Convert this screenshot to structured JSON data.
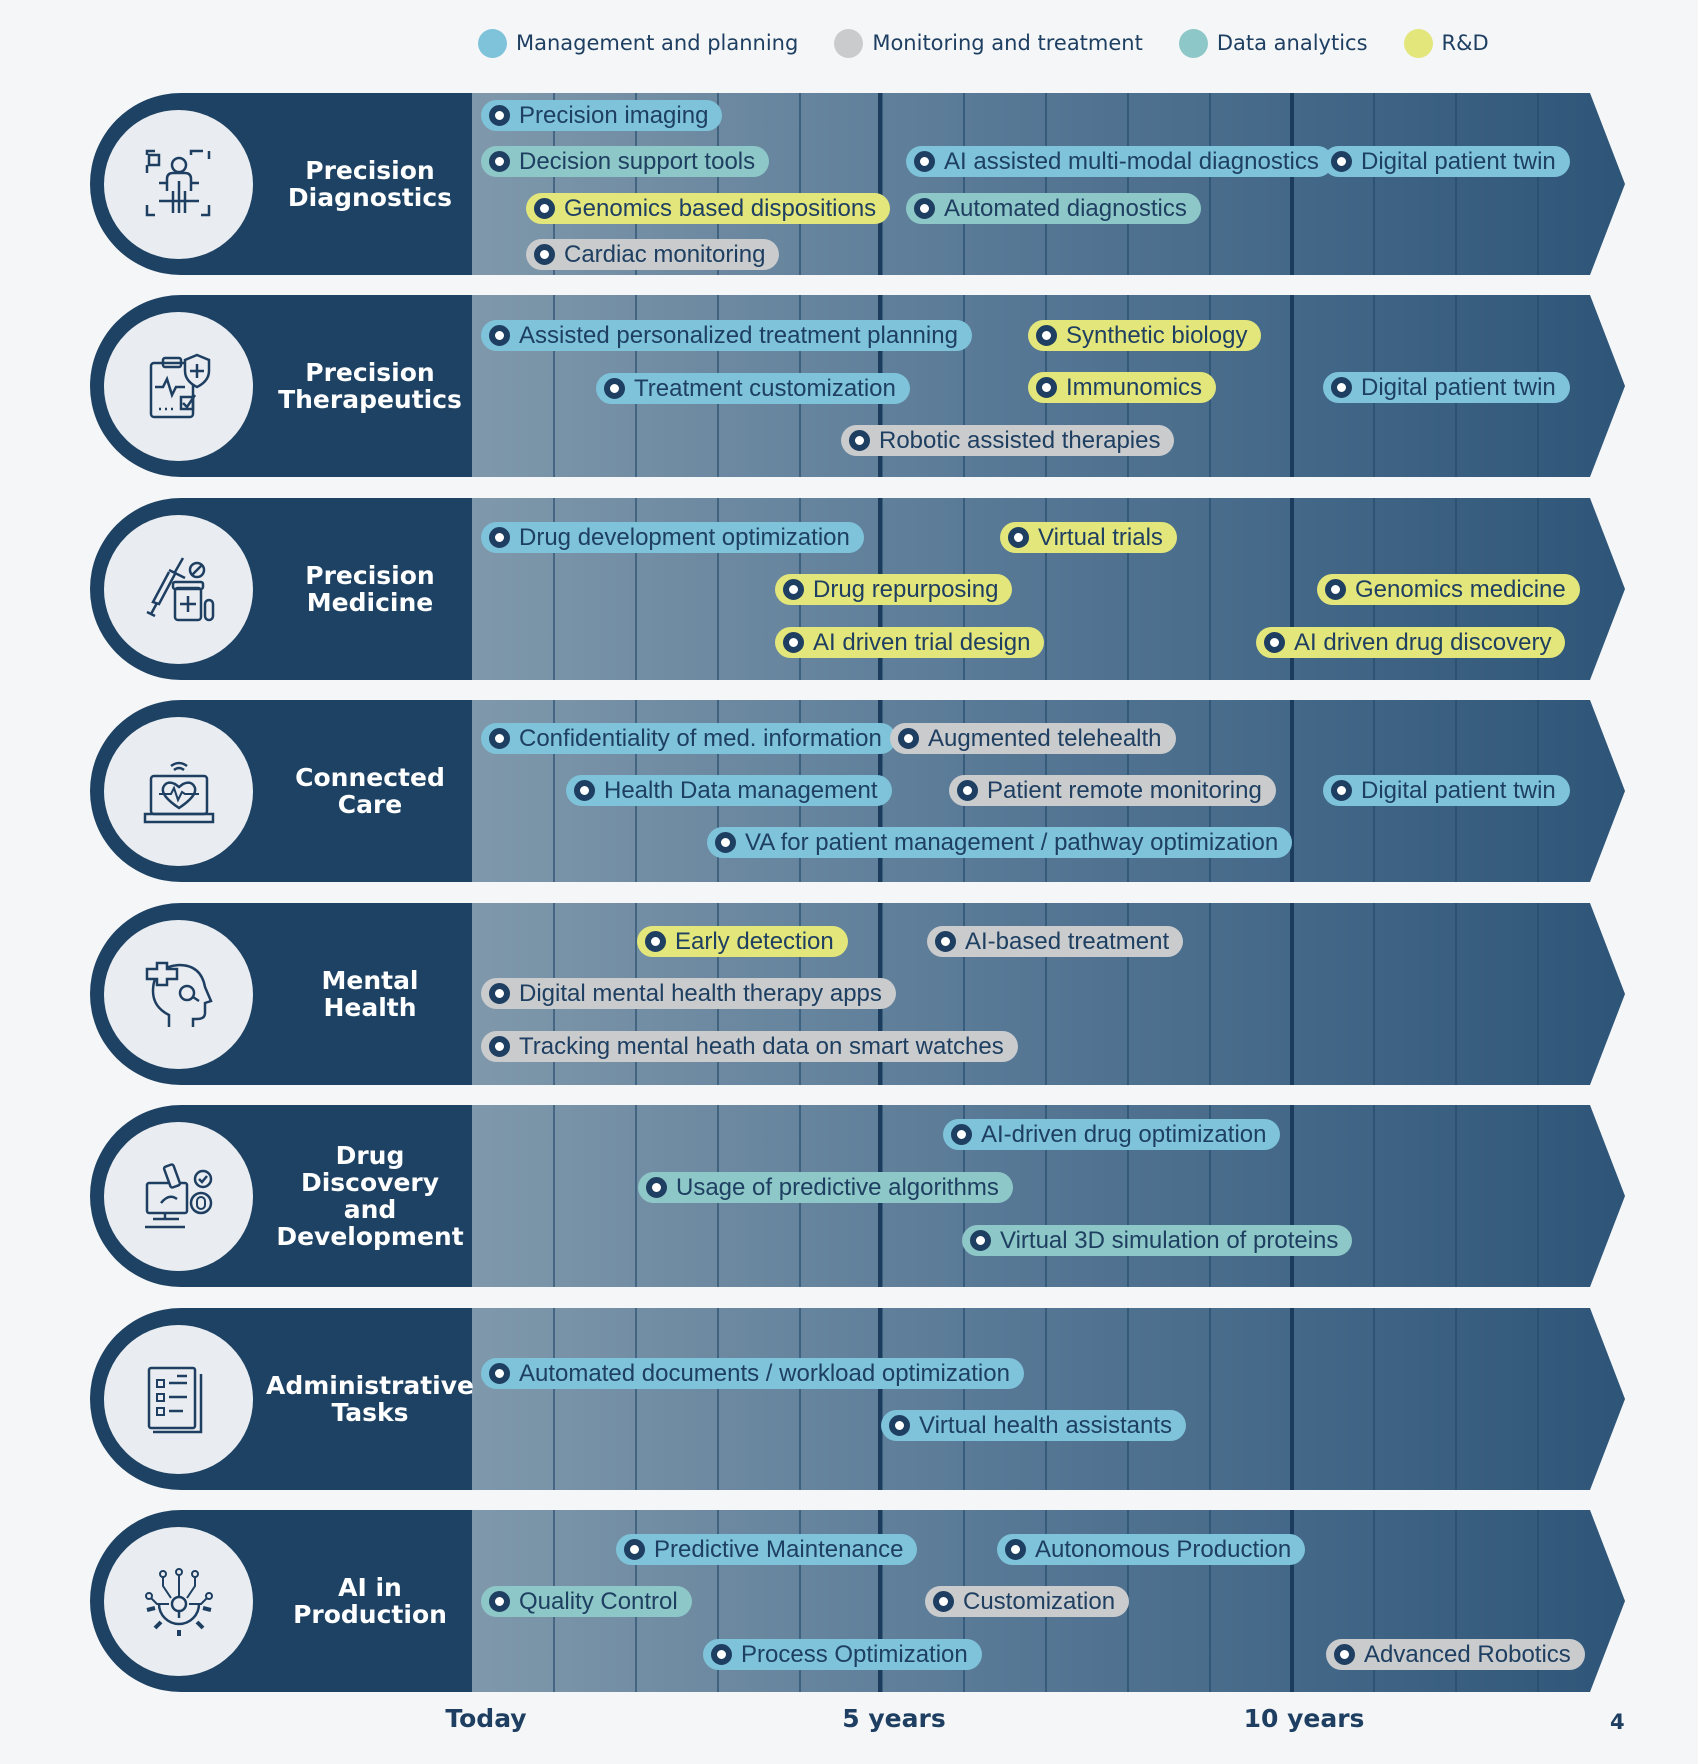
{
  "legend": [
    {
      "label": "Management and planning",
      "color": "#7ec3d9"
    },
    {
      "label": "Monitoring and treatment",
      "color": "#c9cbcd"
    },
    {
      "label": "Data analytics",
      "color": "#8ec7c7"
    },
    {
      "label": "R&D",
      "color": "#e3e67a"
    }
  ],
  "axis": {
    "today": "Today",
    "five_years": "5 years",
    "ten_years": "10 years"
  },
  "page_number": "4",
  "lanes": [
    {
      "title": "Precision\nDiagnostics",
      "icon": "person-scan-icon",
      "items": [
        {
          "label": "Precision imaging",
          "category": "mgmt"
        },
        {
          "label": "Decision support tools",
          "category": "data"
        },
        {
          "label": "Genomics based dispositions",
          "category": "rd"
        },
        {
          "label": "Cardiac monitoring",
          "category": "monitor"
        },
        {
          "label": "AI assisted multi-modal diagnostics",
          "category": "mgmt"
        },
        {
          "label": "Automated diagnostics",
          "category": "data"
        },
        {
          "label": "Digital patient twin",
          "category": "mgmt"
        }
      ]
    },
    {
      "title": "Precision\nTherapeutics",
      "icon": "clipboard-shield-icon",
      "items": [
        {
          "label": "Assisted personalized treatment planning",
          "category": "mgmt"
        },
        {
          "label": "Treatment customization",
          "category": "mgmt"
        },
        {
          "label": "Robotic assisted therapies",
          "category": "monitor"
        },
        {
          "label": "Synthetic biology",
          "category": "rd"
        },
        {
          "label": "Immunomics",
          "category": "rd"
        },
        {
          "label": "Digital patient twin",
          "category": "mgmt"
        }
      ]
    },
    {
      "title": "Precision\nMedicine",
      "icon": "syringe-medicine-icon",
      "items": [
        {
          "label": "Drug development optimization",
          "category": "mgmt"
        },
        {
          "label": "Drug repurposing",
          "category": "rd"
        },
        {
          "label": "AI driven trial design",
          "category": "rd"
        },
        {
          "label": "Virtual trials",
          "category": "rd"
        },
        {
          "label": "Genomics medicine",
          "category": "rd"
        },
        {
          "label": "AI driven drug discovery",
          "category": "rd"
        }
      ]
    },
    {
      "title": "Connected\nCare",
      "icon": "laptop-heart-icon",
      "items": [
        {
          "label": "Confidentiality of med. information",
          "category": "mgmt"
        },
        {
          "label": "Health Data management",
          "category": "mgmt"
        },
        {
          "label": "VA for patient management / pathway optimization",
          "category": "mgmt"
        },
        {
          "label": "Augmented telehealth",
          "category": "monitor"
        },
        {
          "label": "Patient remote monitoring",
          "category": "monitor"
        },
        {
          "label": "Digital patient twin",
          "category": "mgmt"
        }
      ]
    },
    {
      "title": "Mental\nHealth",
      "icon": "head-cross-icon",
      "items": [
        {
          "label": "Early detection",
          "category": "rd"
        },
        {
          "label": "AI-based treatment",
          "category": "monitor"
        },
        {
          "label": "Digital mental health therapy apps",
          "category": "monitor"
        },
        {
          "label": "Tracking mental heath data on smart watches",
          "category": "monitor"
        }
      ]
    },
    {
      "title": "Drug\nDiscovery\nand\nDevelopment",
      "icon": "microscope-icon",
      "items": [
        {
          "label": "AI-driven drug optimization",
          "category": "mgmt"
        },
        {
          "label": "Usage of predictive algorithms",
          "category": "data"
        },
        {
          "label": "Virtual 3D simulation of proteins",
          "category": "data"
        }
      ]
    },
    {
      "title": "Administrative\nTasks",
      "icon": "document-list-icon",
      "items": [
        {
          "label": "Automated documents / workload optimization",
          "category": "mgmt"
        },
        {
          "label": "Virtual health assistants",
          "category": "mgmt"
        }
      ]
    },
    {
      "title": "AI in\nProduction",
      "icon": "gear-circuit-icon",
      "items": [
        {
          "label": "Predictive Maintenance",
          "category": "mgmt"
        },
        {
          "label": "Autonomous Production",
          "category": "mgmt"
        },
        {
          "label": "Quality Control",
          "category": "data"
        },
        {
          "label": "Customization",
          "category": "monitor"
        },
        {
          "label": "Process Optimization",
          "category": "mgmt"
        },
        {
          "label": "Advanced Robotics",
          "category": "monitor"
        }
      ]
    }
  ]
}
